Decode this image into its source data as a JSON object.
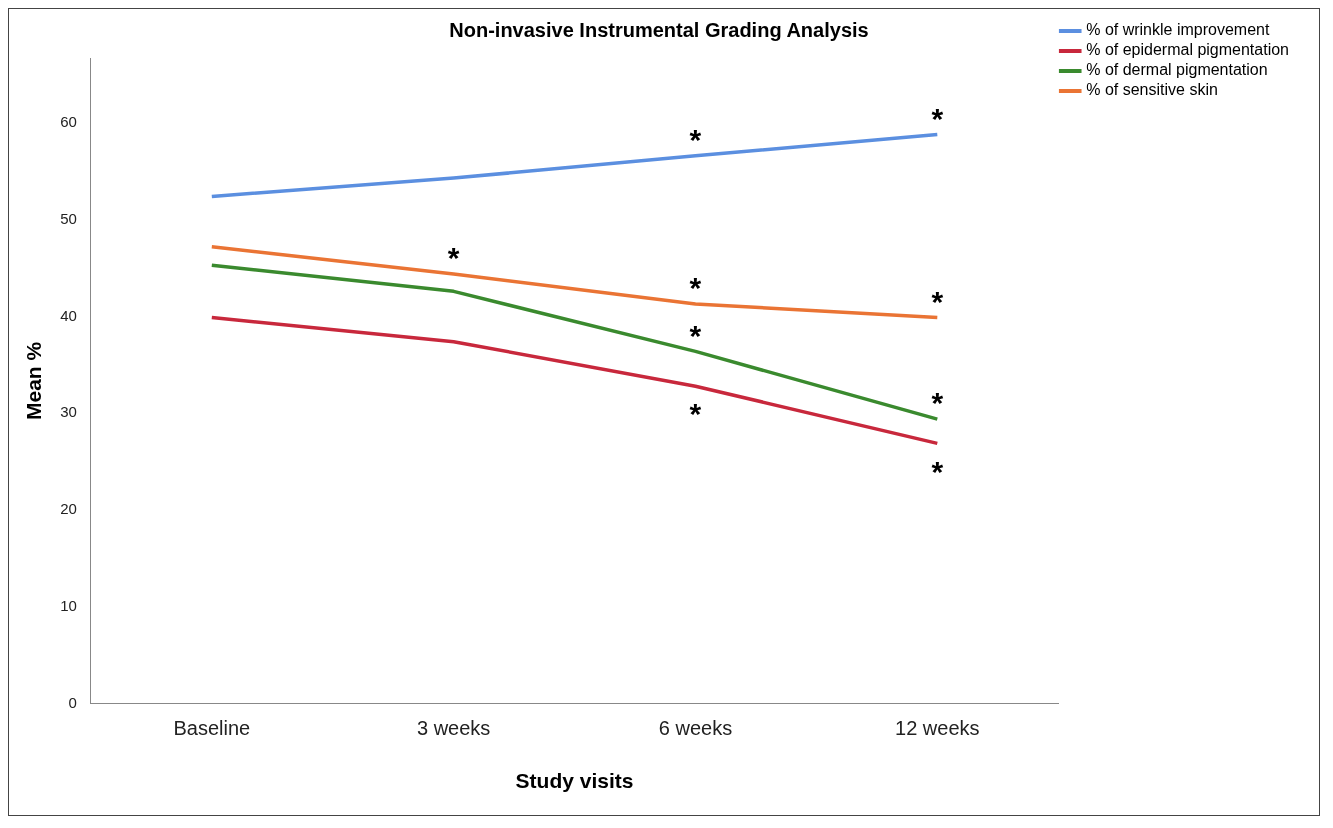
{
  "chart_data": {
    "type": "line",
    "title": "Non-invasive Instrumental Grading Analysis",
    "xlabel": "Study visits",
    "ylabel": "Mean %",
    "categories": [
      "Baseline",
      "3 weeks",
      "6 weeks",
      "12 weeks"
    ],
    "series": [
      {
        "name": "% of wrinkle improvement",
        "color": "#5b8fe0",
        "values": [
          52.4,
          54.3,
          56.6,
          58.8
        ]
      },
      {
        "name": "% of epidermal pigmentation",
        "color": "#c8283c",
        "values": [
          39.9,
          37.4,
          32.8,
          26.9
        ]
      },
      {
        "name": "% of dermal pigmentation",
        "color": "#3a8a2e",
        "values": [
          45.3,
          42.6,
          36.4,
          29.4
        ]
      },
      {
        "name": "% of sensitive skin",
        "color": "#ea7434",
        "values": [
          47.2,
          44.4,
          41.3,
          39.9
        ]
      }
    ],
    "ylim": [
      0,
      66.7
    ],
    "yticks": [
      0,
      10,
      20,
      30,
      40,
      50,
      60
    ],
    "grid": false,
    "legend": "top right",
    "marker": "none",
    "line_style": "solid",
    "annotations": [
      {
        "text": "*",
        "x": "3 weeks",
        "y": 44.4
      },
      {
        "text": "*",
        "x": "6 weeks",
        "y": 56.6
      },
      {
        "text": "*",
        "x": "6 weeks",
        "y": 41.3
      },
      {
        "text": "*",
        "x": "6 weeks",
        "y": 36.4
      },
      {
        "text": "*",
        "x": "6 weeks",
        "y": 32.8
      },
      {
        "text": "*",
        "x": "12 weeks",
        "y": 58.8
      },
      {
        "text": "*",
        "x": "12 weeks",
        "y": 39.9
      },
      {
        "text": "*",
        "x": "12 weeks",
        "y": 29.4
      },
      {
        "text": "*",
        "x": "12 weeks",
        "y": 26.9
      }
    ]
  }
}
